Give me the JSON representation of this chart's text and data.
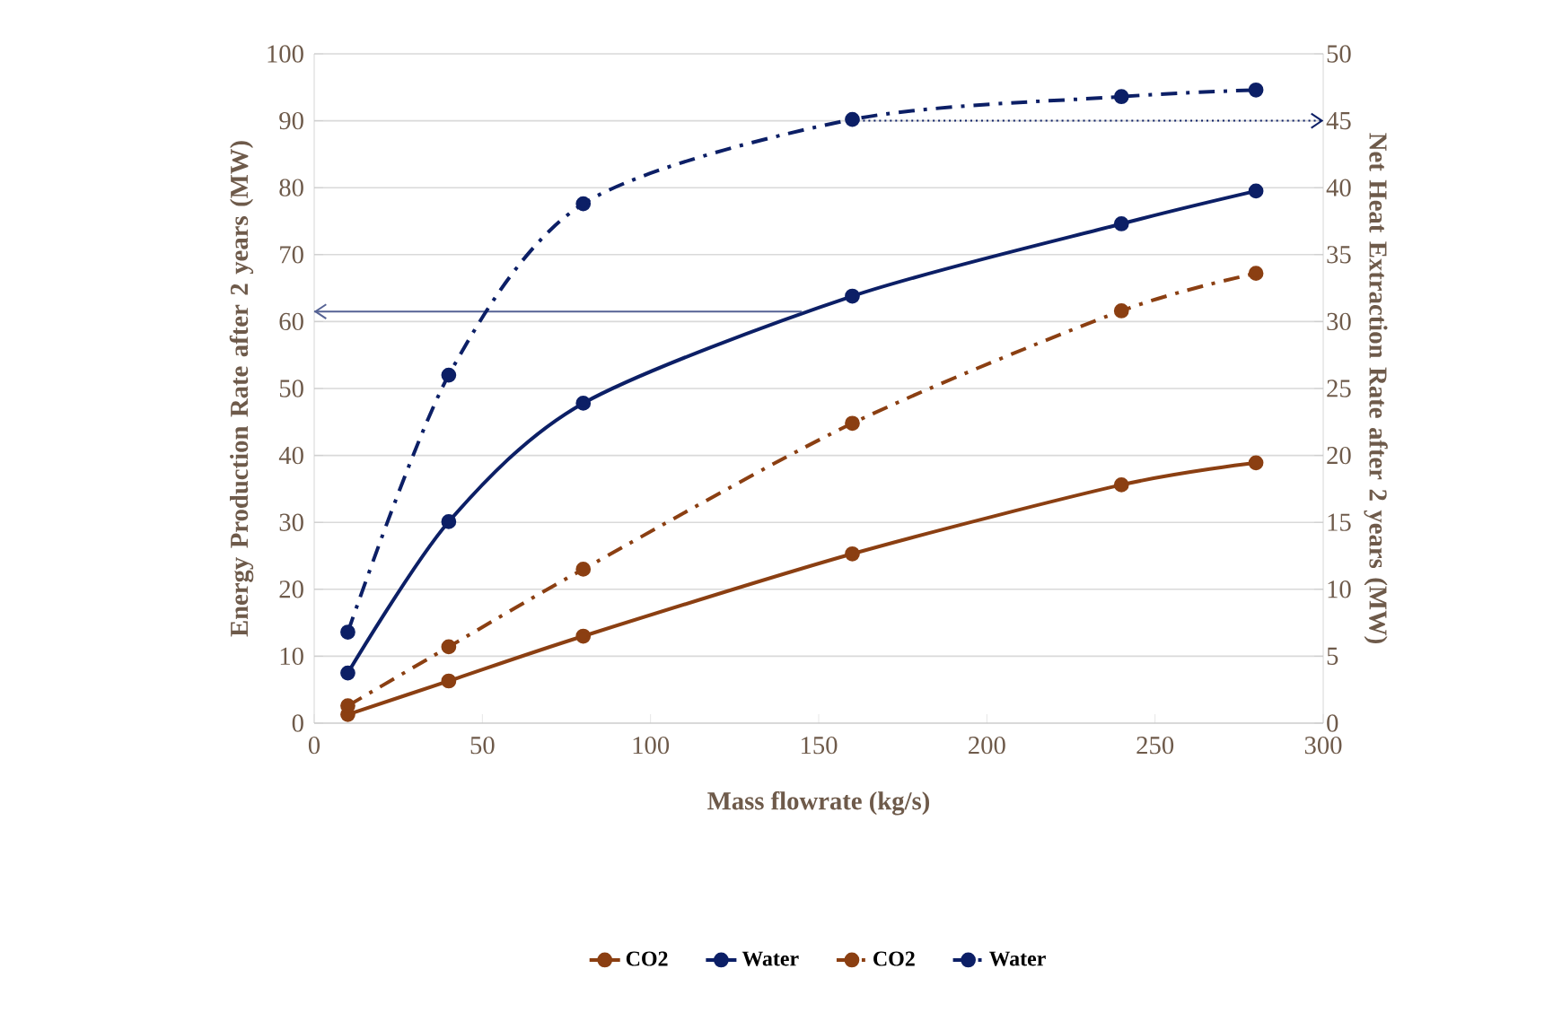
{
  "chart_data": {
    "type": "line",
    "xlabel": "Mass flowrate (kg/s)",
    "ylabel": "Energy Production Rate after 2 years (MW)",
    "y2label": "Net Heat Extraction Rate after 2 years (MW)",
    "x": [
      10,
      40,
      80,
      160,
      240,
      280
    ],
    "series": [
      {
        "name": "CO2",
        "color": "#8b3f12",
        "line_style": "solid",
        "values": [
          1.3,
          6.3,
          13.0,
          25.3,
          35.6,
          38.9
        ]
      },
      {
        "name": "Water",
        "color": "#0c1f66",
        "line_style": "solid",
        "values": [
          7.5,
          30.1,
          47.8,
          63.8,
          74.6,
          79.5
        ]
      },
      {
        "name": "CO2",
        "color": "#8b3f12",
        "line_style": "dashed",
        "axis": "y2",
        "values": [
          1.3,
          5.7,
          11.5,
          22.4,
          30.8,
          33.6
        ]
      },
      {
        "name": "Water",
        "color": "#0c1f66",
        "line_style": "dashed",
        "axis": "y2",
        "values": [
          6.8,
          26.0,
          38.8,
          45.1,
          46.8,
          47.3
        ]
      },
      {
        "color": "#556294",
        "line_style": "solid",
        "marker": "none",
        "x": [
          145,
          0
        ],
        "values": [
          61.5,
          61.5
        ]
      },
      {
        "color": "#0c1f66",
        "line_style": "dotted",
        "marker": "none",
        "axis": "y2",
        "x": [
          160,
          300
        ],
        "values": [
          45,
          45
        ]
      }
    ],
    "xlim": [
      0,
      300
    ],
    "xticks": [
      0,
      50,
      100,
      150,
      200,
      250,
      300
    ],
    "ylim": [
      0,
      100
    ],
    "yticks": [
      0,
      10,
      20,
      30,
      40,
      50,
      60,
      70,
      80,
      90,
      100
    ],
    "y2lim": [
      0,
      50
    ],
    "y2ticks": [
      0,
      5,
      10,
      15,
      20,
      25,
      30,
      35,
      40,
      45,
      50
    ],
    "grid": "y",
    "legend": "bottom",
    "marker": "circle"
  }
}
